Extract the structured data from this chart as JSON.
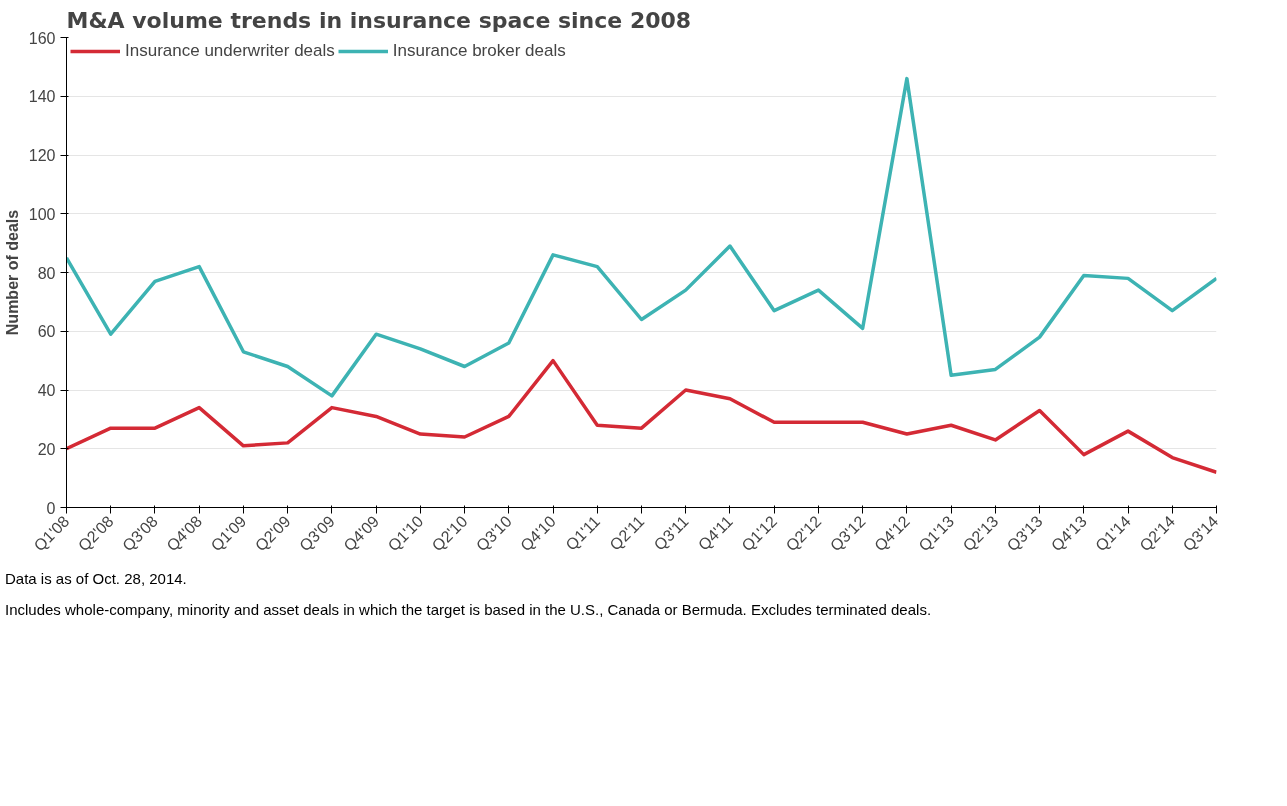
{
  "chart_data": {
    "type": "line",
    "title": "M&A volume trends in insurance space since 2008",
    "ylabel": "Number of deals",
    "categories": [
      "Q1'08",
      "Q2'08",
      "Q3'08",
      "Q4'08",
      "Q1'09",
      "Q2'09",
      "Q3'09",
      "Q4'09",
      "Q1'10",
      "Q2'10",
      "Q3'10",
      "Q4'10",
      "Q1'11",
      "Q2'11",
      "Q3'11",
      "Q4'11",
      "Q1'12",
      "Q2'12",
      "Q3'12",
      "Q4'12",
      "Q1'13",
      "Q2'13",
      "Q3'13",
      "Q4'13",
      "Q1'14",
      "Q2'14",
      "Q3'14"
    ],
    "series": [
      {
        "name": "Insurance underwriter deals",
        "color": "#d42a35",
        "values": [
          20,
          27,
          27,
          34,
          21,
          22,
          34,
          31,
          25,
          24,
          31,
          50,
          28,
          27,
          40,
          37,
          29,
          29,
          29,
          25,
          28,
          23,
          33,
          18,
          26,
          17,
          12
        ]
      },
      {
        "name": "Insurance broker deals",
        "color": "#3db3b3",
        "values": [
          85,
          59,
          77,
          82,
          53,
          48,
          38,
          59,
          54,
          48,
          56,
          86,
          82,
          64,
          74,
          89,
          67,
          74,
          61,
          146,
          45,
          47,
          58,
          79,
          78,
          67,
          78
        ]
      }
    ],
    "ylim": [
      0,
      160
    ],
    "yticks": [
      0,
      20,
      40,
      60,
      80,
      100,
      120,
      140,
      160
    ],
    "grid": "y",
    "legend": "top left",
    "marker": "none",
    "line_style": "solid",
    "annotations": [
      "Data is as of Oct. 28, 2014.",
      "Includes whole-company, minority and asset deals in which the target is based in the U.S., Canada or Bermuda. Excludes terminated deals."
    ]
  }
}
